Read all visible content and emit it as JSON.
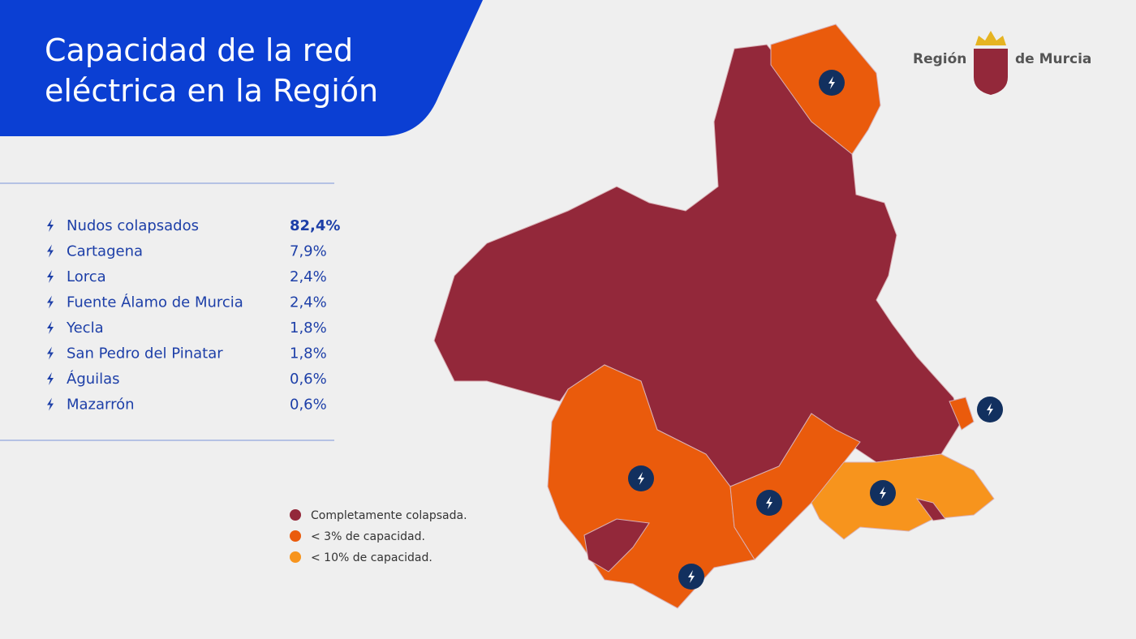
{
  "title": [
    "Capacidad de la red",
    "eléctrica en la Región"
  ],
  "logo": {
    "left": "Región",
    "right": "de Murcia"
  },
  "list": [
    {
      "name": "Nudos colapsados",
      "value": "82,4%"
    },
    {
      "name": "Cartagena",
      "value": "7,9%"
    },
    {
      "name": "Lorca",
      "value": "2,4%"
    },
    {
      "name": "Fuente Álamo de Murcia",
      "value": "2,4%"
    },
    {
      "name": "Yecla",
      "value": "1,8%"
    },
    {
      "name": "San Pedro del Pinatar",
      "value": "1,8%"
    },
    {
      "name": "Águilas",
      "value": "0,6%"
    },
    {
      "name": "Mazarrón",
      "value": "0,6%"
    }
  ],
  "legend": [
    {
      "label": "Completamente colapsada.",
      "color": "#93283a"
    },
    {
      "label": "< 3% de capacidad.",
      "color": "#ea5b0c"
    },
    {
      "label": "< 10% de capacidad.",
      "color": "#f7941d"
    }
  ]
}
